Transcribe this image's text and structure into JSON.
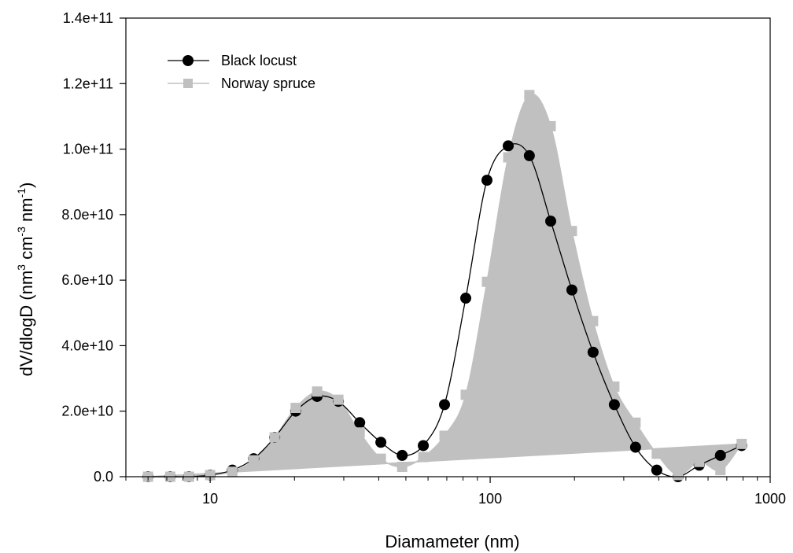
{
  "chart_data": {
    "type": "line",
    "xlabel": "Diamameter (nm)",
    "ylabel": "dV/dlogD (nm",
    "ylabel_sup1": "3",
    "ylabel_mid": " cm",
    "ylabel_sup2": "-3",
    "ylabel_mid2": " nm",
    "ylabel_sup3": "-1",
    "ylabel_end": ")",
    "x_scale": "log",
    "xlim": [
      5,
      1000
    ],
    "ylim": [
      0,
      140000000000
    ],
    "x_ticks": [
      {
        "value": 10,
        "label": "10"
      },
      {
        "value": 100,
        "label": "100"
      },
      {
        "value": 1000,
        "label": "1000"
      }
    ],
    "y_ticks": [
      {
        "value": 0,
        "label": "0.0"
      },
      {
        "value": 20000000000,
        "label": "2.0e+10"
      },
      {
        "value": 40000000000,
        "label": "4.0e+10"
      },
      {
        "value": 60000000000,
        "label": "6.0e+10"
      },
      {
        "value": 80000000000,
        "label": "8.0e+10"
      },
      {
        "value": 100000000000,
        "label": "1.0e+11"
      },
      {
        "value": 120000000000,
        "label": "1.2e+11"
      },
      {
        "value": 140000000000,
        "label": "1.4e+11"
      }
    ],
    "legend_position": "top-left",
    "grid": false,
    "series": [
      {
        "name": "Black locust",
        "color": "#000000",
        "marker": "circle",
        "x": [
          6.0,
          7.2,
          8.4,
          10.0,
          12.0,
          14.3,
          17.0,
          20.2,
          24.1,
          28.7,
          34.2,
          40.7,
          48.5,
          57.7,
          68.7,
          81.8,
          97.4,
          116,
          138,
          164.5,
          195.8,
          233.1,
          277.6,
          330.5,
          393.5,
          468.5,
          557.8,
          664.2,
          790.8
        ],
        "y": [
          0,
          0,
          0,
          500000000,
          2000000000,
          5500000000,
          12000000000,
          20000000000,
          24500000000,
          23000000000,
          16500000000,
          10500000000,
          6500000000,
          9500000000,
          22000000000,
          54500000000,
          90500000000,
          101000000000,
          98000000000,
          78000000000,
          57000000000,
          38000000000,
          22000000000,
          9000000000,
          2000000000,
          0,
          3500000000,
          6500000000,
          9500000000
        ]
      },
      {
        "name": "Norway spruce",
        "color": "#c0c0c0",
        "marker": "square",
        "x": [
          6.0,
          7.2,
          8.4,
          10.0,
          12.0,
          14.3,
          17.0,
          20.2,
          24.1,
          28.7,
          34.2,
          40.7,
          48.5,
          57.7,
          68.7,
          81.8,
          97.4,
          116,
          138,
          164.5,
          195.8,
          233.1,
          277.6,
          330.5,
          393.5,
          468.5,
          557.8,
          664.2,
          790.8
        ],
        "y": [
          0,
          0,
          0,
          500000000,
          1500000000,
          5000000000,
          12000000000,
          21000000000,
          26000000000,
          23500000000,
          13500000000,
          5500000000,
          3000000000,
          6000000000,
          12500000000,
          25000000000,
          59500000000,
          97500000000,
          116500000000,
          107000000000,
          75000000000,
          47500000000,
          27500000000,
          16500000000,
          7000000000,
          500000000,
          4500000000,
          2000000000,
          10000000000
        ]
      }
    ]
  }
}
